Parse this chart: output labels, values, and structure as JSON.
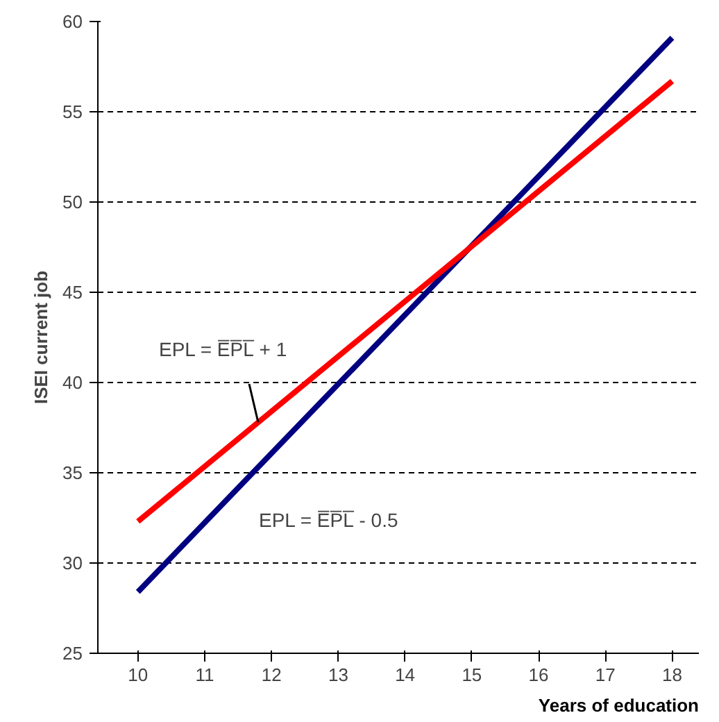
{
  "chart_data": {
    "type": "line",
    "xlabel": "Years of education",
    "ylabel": "ISEI current job",
    "x": [
      10,
      18
    ],
    "series": [
      {
        "color": "#000080",
        "values": [
          28.4,
          59.1
        ]
      },
      {
        "color": "#ff0000",
        "values": [
          32.3,
          56.7
        ]
      }
    ],
    "xlim": [
      9.4,
      18.4
    ],
    "xticks": [
      10,
      11,
      12,
      13,
      14,
      15,
      16,
      17,
      18
    ],
    "ylim": [
      25,
      60
    ],
    "yticks": [
      25,
      30,
      35,
      40,
      45,
      50,
      55,
      60
    ],
    "grid": "y",
    "line_style": "solid",
    "marker": "none",
    "annotations": [
      {
        "text": "EPL = E̅P̅L̅ + 1",
        "x": 11.8,
        "y": 37.8
      },
      "EPL = E̅P̅L̅ - 0.5"
    ]
  }
}
